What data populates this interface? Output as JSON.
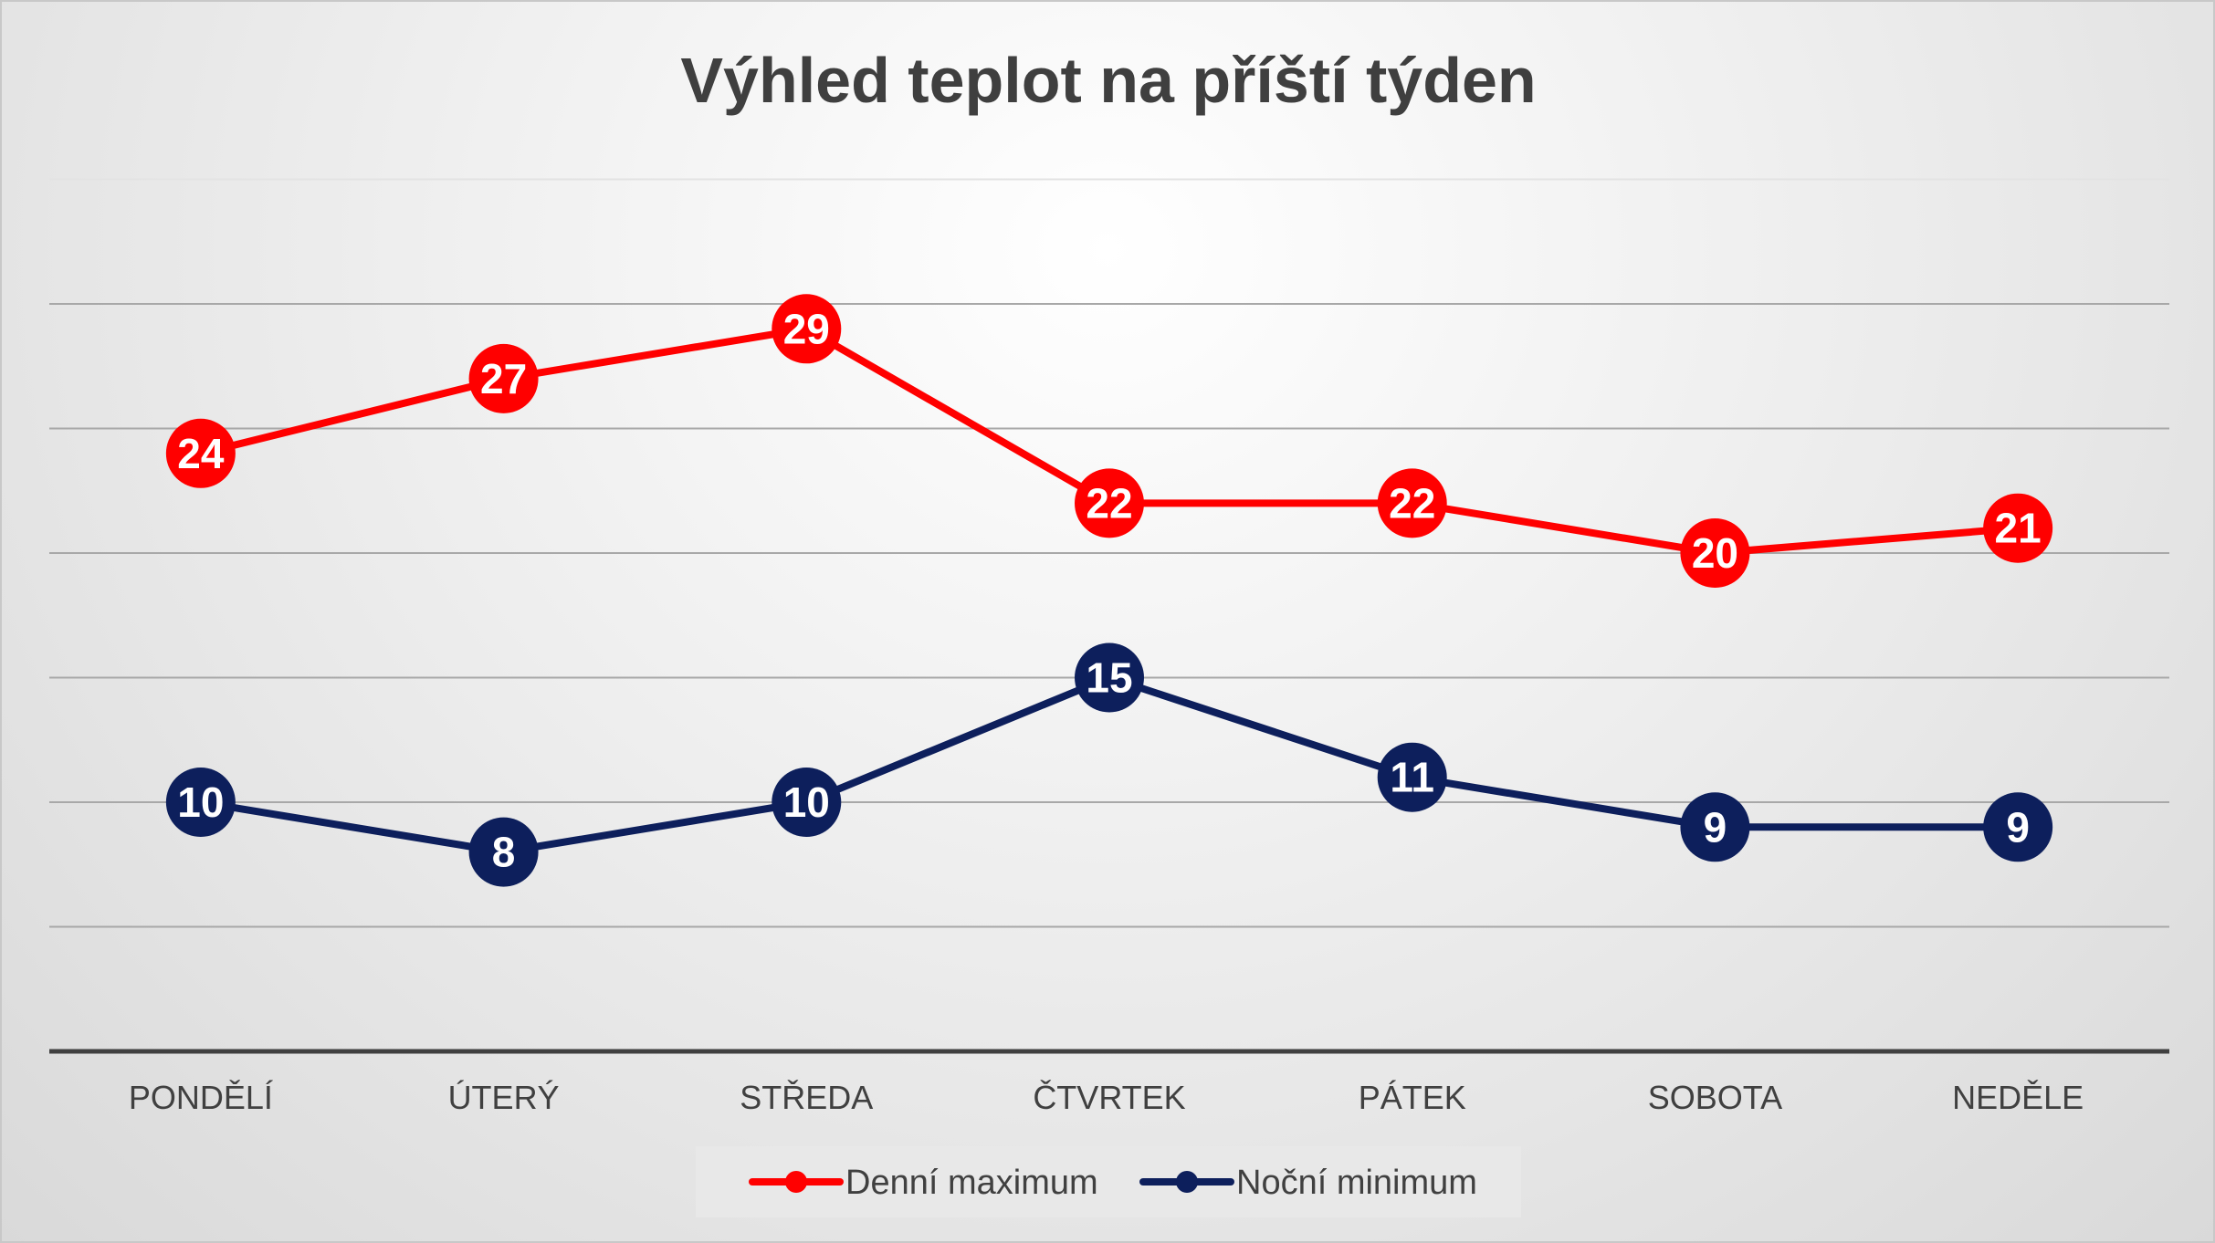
{
  "chart_data": {
    "type": "line",
    "title": "Výhled teplot na příští týden",
    "xlabel": "",
    "ylabel": "",
    "categories": [
      "PONDĚLÍ",
      "ÚTERÝ",
      "STŘEDA",
      "ČTVRTEK",
      "PÁTEK",
      "SOBOTA",
      "NEDĚLE"
    ],
    "series": [
      {
        "name": "Denní maximum",
        "color": "#ff0000",
        "values": [
          24,
          27,
          29,
          22,
          22,
          20,
          21
        ]
      },
      {
        "name": "Noční minimum",
        "color": "#0d1f5c",
        "values": [
          10,
          8,
          10,
          15,
          11,
          9,
          9
        ]
      }
    ],
    "ylim": [
      0,
      35
    ],
    "y_gridline_step": 5,
    "y_tick_labels_shown": false,
    "grid": true,
    "data_labels": true,
    "legend_position": "bottom"
  }
}
